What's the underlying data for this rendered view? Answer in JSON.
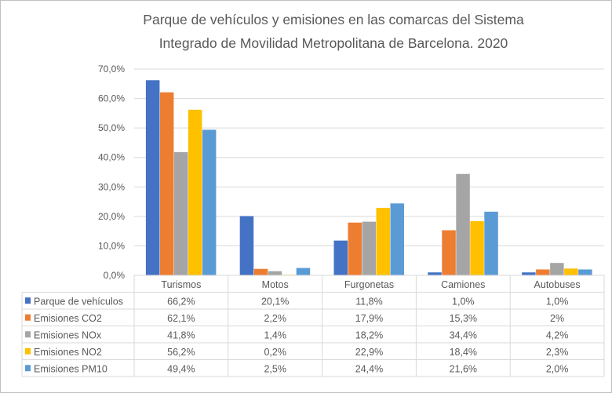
{
  "chart_data": {
    "type": "bar",
    "title": [
      "Parque de vehículos y emisiones en las comarcas del Sistema",
      "Integrado de Movilidad Metropolitana de Barcelona. 2020"
    ],
    "categories": [
      "Turismos",
      "Motos",
      "Furgonetas",
      "Camiones",
      "Autobuses"
    ],
    "ylim": [
      0,
      70
    ],
    "yticks": [
      "0,0%",
      "10,0%",
      "20,0%",
      "30,0%",
      "40,0%",
      "50,0%",
      "60,0%",
      "70,0%"
    ],
    "grid": true,
    "legend": "data-table-bottom",
    "series": [
      {
        "name": "Parque de vehículos",
        "color": "#4472C4",
        "values": [
          66.2,
          20.1,
          11.8,
          1.0,
          1.0
        ],
        "labels": [
          "66,2%",
          "20,1%",
          "11,8%",
          "1,0%",
          "1,0%"
        ]
      },
      {
        "name": "Emisiones CO2",
        "color": "#ED7D31",
        "values": [
          62.1,
          2.2,
          17.9,
          15.3,
          2
        ],
        "labels": [
          "62,1%",
          "2,2%",
          "17,9%",
          "15,3%",
          "2%"
        ]
      },
      {
        "name": "Emisiones NOx",
        "color": "#A5A5A5",
        "values": [
          41.8,
          1.4,
          18.2,
          34.4,
          4.2
        ],
        "labels": [
          "41,8%",
          "1,4%",
          "18,2%",
          "34,4%",
          "4,2%"
        ]
      },
      {
        "name": "Emisiones NO2",
        "color": "#FFC000",
        "values": [
          56.2,
          0.2,
          22.9,
          18.4,
          2.3
        ],
        "labels": [
          "56,2%",
          "0,2%",
          "22,9%",
          "18,4%",
          "2,3%"
        ]
      },
      {
        "name": "Emisiones PM10",
        "color": "#5B9BD5",
        "values": [
          49.4,
          2.5,
          24.4,
          21.6,
          2.0
        ],
        "labels": [
          "49,4%",
          "2,5%",
          "24,4%",
          "21,6%",
          "2,0%"
        ]
      }
    ]
  }
}
